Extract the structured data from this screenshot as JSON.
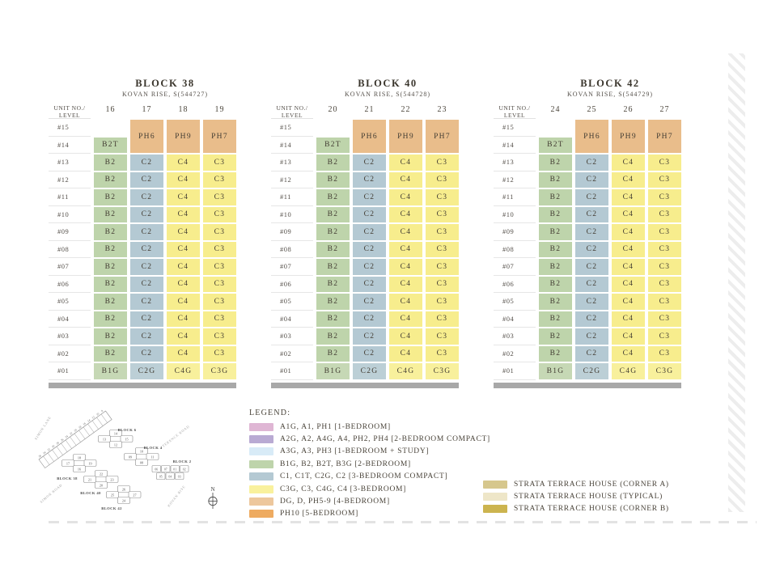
{
  "axis": {
    "line1": "UNIT NO./",
    "line2": "LEVEL"
  },
  "blocks": [
    {
      "title": "BLOCK 38",
      "subtitle": "KOVAN RISE, S(544727)",
      "units": [
        "16",
        "17",
        "18",
        "19"
      ]
    },
    {
      "title": "BLOCK 40",
      "subtitle": "KOVAN RISE, S(544728)",
      "units": [
        "20",
        "21",
        "22",
        "23"
      ]
    },
    {
      "title": "BLOCK 42",
      "subtitle": "KOVAN RISE, S(544729)",
      "units": [
        "24",
        "25",
        "26",
        "27"
      ]
    }
  ],
  "stack": {
    "top_level": "#15",
    "penthouse_level": "#14",
    "penthouse_left_cell": "B2T",
    "penthouse_cells": [
      "PH6",
      "PH9",
      "PH7"
    ],
    "typical_levels": [
      "#13",
      "#12",
      "#11",
      "#10",
      "#09",
      "#08",
      "#07",
      "#06",
      "#05",
      "#04",
      "#03",
      "#02"
    ],
    "typical_cells": [
      "B2",
      "C2",
      "C4",
      "C3"
    ],
    "ground_level": "#01",
    "ground_cells": [
      "B1G",
      "C2G",
      "C4G",
      "C3G"
    ]
  },
  "type_colors": {
    "B2T": "#bed4ab",
    "B2": "#bed4ab",
    "B1G": "#c6d8b5",
    "C2": "#b4c9d3",
    "C2G": "#bccfd6",
    "C4": "#f7ed8d",
    "C3": "#f7ed8d",
    "C4G": "#f8f09c",
    "C3G": "#f8f09c",
    "PH6": "#e9bd8b",
    "PH9": "#e9bd8b",
    "PH7": "#e9bd8b"
  },
  "legend": {
    "title": "LEGEND:",
    "items": [
      {
        "color": "#dfb6d4",
        "label": "A1G, A1, PH1 [1-BEDROOM]"
      },
      {
        "color": "#b9aad3",
        "label": "A2G, A2, A4G, A4, PH2, PH4 [2-BEDROOM COMPACT]"
      },
      {
        "color": "#d8ebf7",
        "label": "A3G, A3, PH3 [1-BEDROOM + STUDY]"
      },
      {
        "color": "#bed4ab",
        "label": "B1G, B2, B2T, B3G [2-BEDROOM]"
      },
      {
        "color": "#b4c9d3",
        "label": "C1, C1T, C2G, C2 [3-BEDROOM COMPACT]"
      },
      {
        "color": "#f9f19d",
        "label": "C3G, C3, C4G, C4 [3-BEDROOM]"
      },
      {
        "color": "#edc79d",
        "label": "DG, D, PH5-9 [4-BEDROOM]"
      },
      {
        "color": "#eeab61",
        "label": "PH10 [5-BEDROOM]"
      }
    ],
    "strata_items": [
      {
        "color": "#d6c78d",
        "label": "STRATA TERRACE HOUSE (CORNER A)"
      },
      {
        "color": "#eee6c8",
        "label": "STRATA TERRACE HOUSE (TYPICAL)"
      },
      {
        "color": "#ccb44f",
        "label": "STRATA TERRACE HOUSE (CORNER B)"
      }
    ]
  },
  "site_map": {
    "roads": [
      "SIMON LANE",
      "TERENCE ROAD",
      "SIMON ROAD",
      "KOVAN RISE"
    ],
    "map_blocks": [
      {
        "name": "BLOCK 6",
        "units": [
          "14",
          "15",
          "13",
          "12"
        ]
      },
      {
        "name": "BLOCK 4",
        "units": [
          "10",
          "11",
          "09",
          "08"
        ]
      },
      {
        "name": "BLOCK 2",
        "units": [
          "06",
          "07",
          "01",
          "02",
          "05",
          "04",
          "03"
        ]
      },
      {
        "name": "BLOCK 38",
        "units": [
          "18",
          "19",
          "17",
          "16"
        ]
      },
      {
        "name": "BLOCK 40",
        "units": [
          "22",
          "23",
          "21",
          "20"
        ]
      },
      {
        "name": "BLOCK 42",
        "units": [
          "26",
          "27",
          "25",
          "24"
        ]
      }
    ],
    "terrace_numbers": [
      "8",
      "10",
      "12",
      "14",
      "16",
      "18",
      "20",
      "22",
      "24",
      "26",
      "28",
      "30",
      "32",
      "34",
      "36"
    ],
    "compass_label": "N"
  }
}
